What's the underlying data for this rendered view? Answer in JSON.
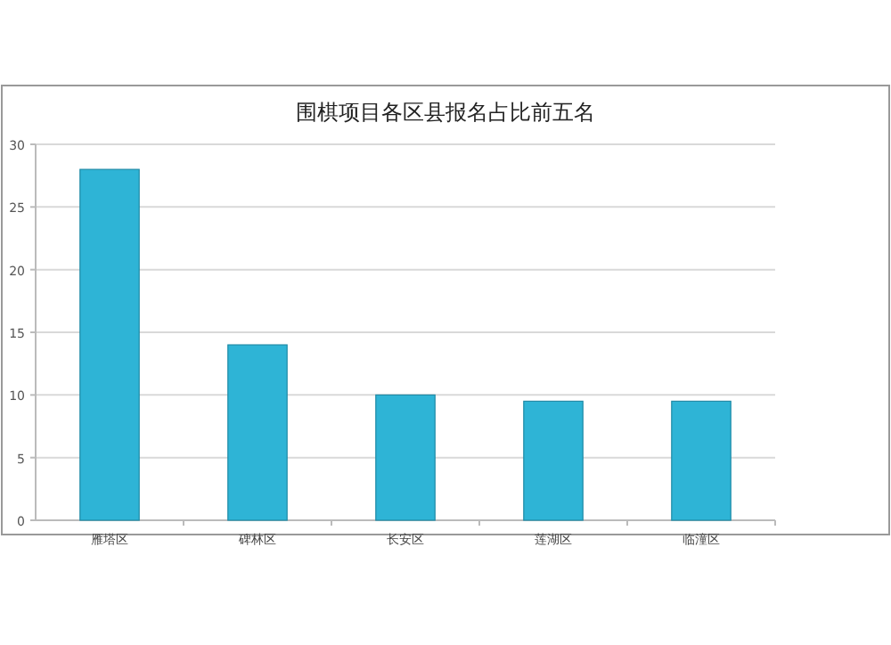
{
  "chart_data": {
    "type": "bar",
    "title": "围棋项目各区县报名占比前五名",
    "categories": [
      "雁塔区",
      "碑林区",
      "长安区",
      "莲湖区",
      "临潼区"
    ],
    "values": [
      28,
      14,
      10,
      9.5,
      9.5
    ],
    "color": "#2eb4d6",
    "ylim": [
      0,
      30
    ],
    "yticks": [
      0,
      5,
      10,
      15,
      20,
      25,
      30
    ],
    "grid": "y"
  }
}
